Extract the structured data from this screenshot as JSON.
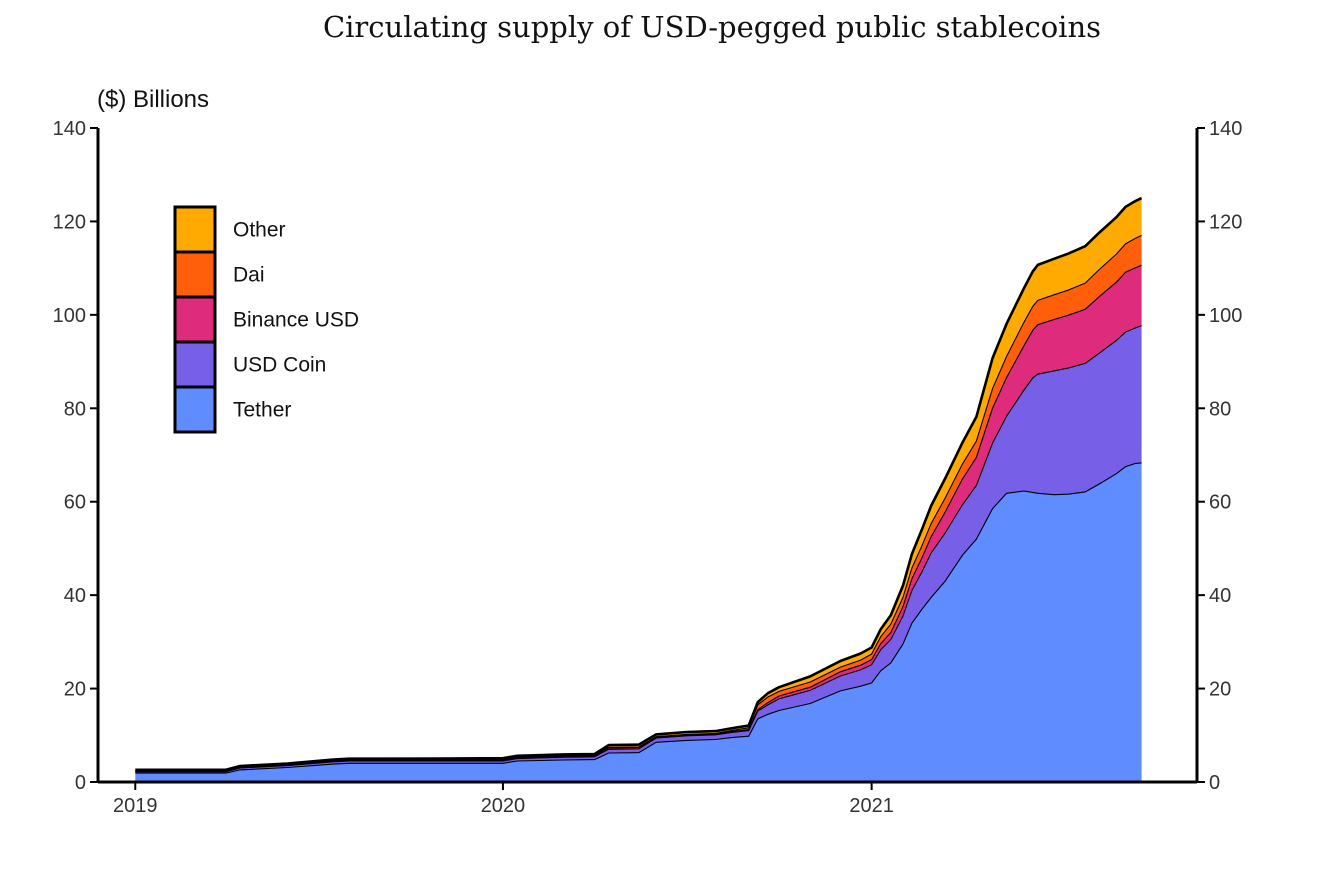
{
  "chart_data": {
    "type": "area",
    "stacked": true,
    "title": "Circulating supply of USD-pegged public stablecoins",
    "unit_label": "($) Billions",
    "x_tick_labels": [
      "2019",
      "2020",
      "2021"
    ],
    "y_ticks": [
      0,
      20,
      40,
      60,
      80,
      100,
      120,
      140
    ],
    "ylim": [
      0,
      140
    ],
    "xlim": [
      "2018-11-25",
      "2021-11-20"
    ],
    "legend_position": "top-left",
    "grid": false,
    "x": [
      "2019-01-01",
      "2019-04-01",
      "2019-04-15",
      "2019-06-01",
      "2019-07-15",
      "2019-08-01",
      "2019-11-01",
      "2020-01-01",
      "2020-01-15",
      "2020-03-01",
      "2020-04-01",
      "2020-04-15",
      "2020-05-15",
      "2020-06-01",
      "2020-07-01",
      "2020-07-30",
      "2020-08-15",
      "2020-09-01",
      "2020-09-10",
      "2020-09-20",
      "2020-10-01",
      "2020-11-01",
      "2020-12-01",
      "2020-12-21",
      "2021-01-01",
      "2021-01-10",
      "2021-01-20",
      "2021-02-01",
      "2021-02-10",
      "2021-02-20",
      "2021-03-01",
      "2021-03-15",
      "2021-04-01",
      "2021-04-15",
      "2021-05-01",
      "2021-05-15",
      "2021-06-01",
      "2021-06-10",
      "2021-06-15",
      "2021-07-01",
      "2021-07-15",
      "2021-08-01",
      "2021-08-15",
      "2021-09-01",
      "2021-09-10",
      "2021-09-20",
      "2021-09-26"
    ],
    "series": [
      {
        "name": "Tether",
        "color": "#5f8dff",
        "values": [
          1.9,
          1.9,
          2.6,
          3.1,
          3.8,
          4.0,
          4.0,
          4.0,
          4.5,
          4.7,
          4.8,
          6.2,
          6.3,
          8.5,
          8.9,
          9.1,
          9.5,
          9.8,
          13.5,
          14.5,
          15.3,
          16.8,
          19.5,
          20.5,
          21.2,
          23.8,
          25.5,
          29.5,
          34.0,
          37.0,
          39.5,
          43.0,
          48.5,
          52.0,
          58.5,
          61.8,
          62.3,
          62.0,
          61.8,
          61.5,
          61.6,
          62.1,
          63.8,
          66.0,
          67.5,
          68.2,
          68.3
        ]
      },
      {
        "name": "USD Coin",
        "color": "#785fe8",
        "values": [
          0.3,
          0.3,
          0.4,
          0.4,
          0.5,
          0.5,
          0.5,
          0.5,
          0.5,
          0.6,
          0.6,
          0.8,
          0.8,
          0.9,
          1.0,
          1.0,
          1.1,
          1.2,
          1.7,
          2.0,
          2.5,
          2.8,
          3.2,
          3.5,
          3.9,
          4.5,
          5.0,
          6.0,
          7.0,
          8.0,
          9.5,
          10.3,
          10.8,
          11.5,
          14.0,
          16.5,
          21.5,
          24.5,
          25.5,
          26.5,
          27.0,
          27.5,
          28.0,
          28.5,
          28.8,
          29.0,
          29.4
        ]
      },
      {
        "name": "Binance USD",
        "color": "#de2b7c",
        "values": [
          0.02,
          0.02,
          0.03,
          0.06,
          0.08,
          0.08,
          0.1,
          0.2,
          0.2,
          0.2,
          0.2,
          0.3,
          0.3,
          0.2,
          0.2,
          0.2,
          0.2,
          0.2,
          0.3,
          0.5,
          0.6,
          0.7,
          0.9,
          1.0,
          1.1,
          1.3,
          1.5,
          2.0,
          2.5,
          3.0,
          3.5,
          4.5,
          5.5,
          6.0,
          7.5,
          8.3,
          9.5,
          10.2,
          10.6,
          11.0,
          11.3,
          11.6,
          12.1,
          12.5,
          12.8,
          12.9,
          12.9
        ]
      },
      {
        "name": "Dai",
        "color": "#ff5e0a",
        "values": [
          0.1,
          0.1,
          0.1,
          0.1,
          0.1,
          0.1,
          0.1,
          0.1,
          0.1,
          0.1,
          0.1,
          0.1,
          0.1,
          0.1,
          0.1,
          0.1,
          0.2,
          0.4,
          1.0,
          1.2,
          1.0,
          1.1,
          1.0,
          1.1,
          1.2,
          1.5,
          1.8,
          2.0,
          2.3,
          2.6,
          2.8,
          3.0,
          3.2,
          3.5,
          4.2,
          4.5,
          5.0,
          5.1,
          5.2,
          5.3,
          5.4,
          5.6,
          5.8,
          6.0,
          6.1,
          6.3,
          6.4
        ]
      },
      {
        "name": "Other",
        "color": "#ffaa00",
        "values": [
          0.3,
          0.3,
          0.3,
          0.3,
          0.3,
          0.3,
          0.3,
          0.3,
          0.3,
          0.3,
          0.3,
          0.5,
          0.5,
          0.5,
          0.5,
          0.5,
          0.5,
          0.5,
          0.6,
          0.8,
          0.9,
          1.2,
          1.3,
          1.4,
          1.4,
          1.6,
          1.9,
          2.5,
          3.0,
          3.5,
          3.8,
          4.2,
          4.6,
          5.2,
          6.5,
          7.0,
          7.3,
          7.5,
          7.6,
          7.7,
          7.8,
          7.9,
          7.9,
          7.9,
          7.9,
          8.0,
          8.0
        ]
      }
    ]
  }
}
